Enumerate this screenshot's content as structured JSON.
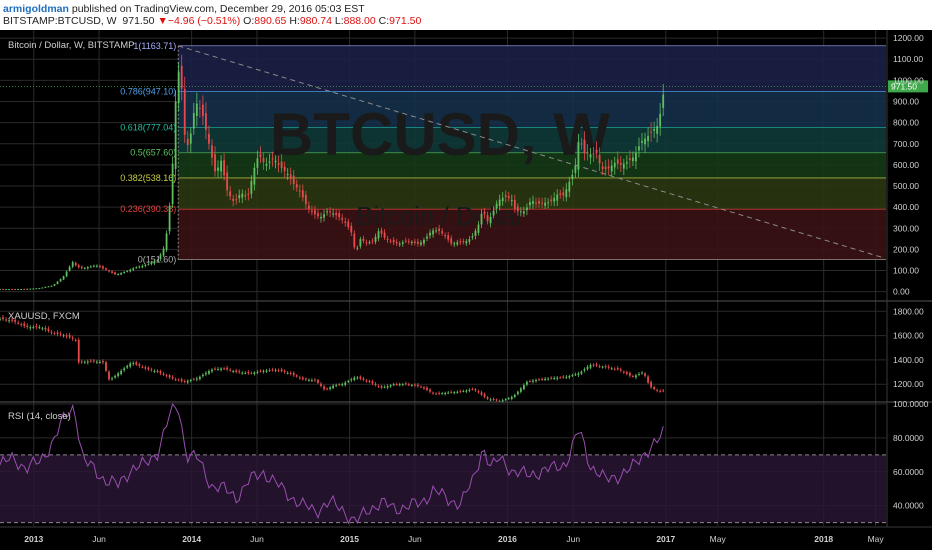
{
  "header": {
    "author": "armigoldman",
    "published": "published on TradingView.com, December 29, 2016 05:03 EST",
    "symbol": "BITSTAMP:BTCUSD, W",
    "last": "971.50",
    "change": "−4.96 (−0.51%)",
    "o_label": "O:",
    "o_value": "890.65",
    "h_label": "H:",
    "h_value": "980.74",
    "l_label": "L:",
    "l_value": "888.00",
    "c_label": "C:",
    "c_value": "971.50"
  },
  "colors": {
    "background": "#000000",
    "grid": "#2a2a2a",
    "candle_up": "#5fbf5f",
    "candle_down": "#e84b4b",
    "rsi_line": "#9a4fb0",
    "rsi_band": "#2a1636",
    "price_tag": "#3ea84a"
  },
  "chart_data": [
    {
      "type": "candlestick",
      "title": "Bitcoin / Dollar, W, BITSTAMP",
      "watermark": "BTCUSD, W",
      "watermark_sub": "Bitcoin / Dollar",
      "y_ticks": [
        "1200.00",
        "1100.00",
        "1000.00",
        "900.00",
        "800.00",
        "700.00",
        "600.00",
        "500.00",
        "400.00",
        "300.00",
        "200.00",
        "100.00",
        "0.00"
      ],
      "ylim": [
        -30,
        1210
      ],
      "last_price_label": "971.50",
      "x_time_range": [
        "2012-10-15",
        "2018-05-25"
      ],
      "fib_levels": [
        {
          "ratio": "1",
          "price": 1163.71,
          "label": "1(1163.71)",
          "label_color": "#aab0ff"
        },
        {
          "ratio": "0.786",
          "price": 947.1,
          "label": "0.786(947.10)",
          "label_color": "#4fa0e6"
        },
        {
          "ratio": "0.618",
          "price": 777.04,
          "label": "0.618(777.04)",
          "label_color": "#22c0a0"
        },
        {
          "ratio": "0.5",
          "price": 657.6,
          "label": "0.5(657.60)",
          "label_color": "#5fc85f"
        },
        {
          "ratio": "0.382",
          "price": 538.16,
          "label": "0.382(538.16)",
          "label_color": "#c8d045"
        },
        {
          "ratio": "0.236",
          "price": 390.38,
          "label": "0.236(390.38)",
          "label_color": "#e84040"
        },
        {
          "ratio": "0",
          "price": 151.6,
          "label": "0(151.60)",
          "label_color": "#b0b0b0"
        }
      ],
      "trendline": [
        [
          "2013-12-01",
          1163.71
        ],
        [
          "2018-05-20",
          160
        ]
      ],
      "close_series": [
        [
          "2012-10-15",
          12
        ],
        [
          "2012-11-15",
          12
        ],
        [
          "2012-12-15",
          13
        ],
        [
          "2013-01-15",
          17
        ],
        [
          "2013-02-15",
          30
        ],
        [
          "2013-03-10",
          70
        ],
        [
          "2013-04-01",
          140
        ],
        [
          "2013-04-10",
          120
        ],
        [
          "2013-04-20",
          110
        ],
        [
          "2013-05-05",
          115
        ],
        [
          "2013-05-25",
          125
        ],
        [
          "2013-06-15",
          105
        ],
        [
          "2013-07-10",
          80
        ],
        [
          "2013-08-01",
          95
        ],
        [
          "2013-08-25",
          115
        ],
        [
          "2013-09-15",
          125
        ],
        [
          "2013-10-15",
          150
        ],
        [
          "2013-11-01",
          220
        ],
        [
          "2013-11-15",
          480
        ],
        [
          "2013-11-25",
          900
        ],
        [
          "2013-12-05",
          1100
        ],
        [
          "2013-12-15",
          750
        ],
        [
          "2013-12-25",
          680
        ],
        [
          "2014-01-10",
          900
        ],
        [
          "2014-01-25",
          850
        ],
        [
          "2014-02-10",
          700
        ],
        [
          "2014-02-25",
          560
        ],
        [
          "2014-03-10",
          620
        ],
        [
          "2014-03-25",
          470
        ],
        [
          "2014-04-10",
          420
        ],
        [
          "2014-04-25",
          470
        ],
        [
          "2014-05-10",
          440
        ],
        [
          "2014-05-25",
          580
        ],
        [
          "2014-06-05",
          650
        ],
        [
          "2014-06-20",
          600
        ],
        [
          "2014-07-10",
          630
        ],
        [
          "2014-07-25",
          590
        ],
        [
          "2014-08-10",
          560
        ],
        [
          "2014-08-25",
          510
        ],
        [
          "2014-09-10",
          470
        ],
        [
          "2014-09-25",
          400
        ],
        [
          "2014-10-10",
          370
        ],
        [
          "2014-10-25",
          350
        ],
        [
          "2014-11-10",
          380
        ],
        [
          "2014-11-25",
          370
        ],
        [
          "2014-12-10",
          350
        ],
        [
          "2014-12-25",
          320
        ],
        [
          "2015-01-05",
          280
        ],
        [
          "2015-01-15",
          180
        ],
        [
          "2015-01-25",
          250
        ],
        [
          "2015-02-10",
          230
        ],
        [
          "2015-02-25",
          240
        ],
        [
          "2015-03-10",
          290
        ],
        [
          "2015-03-25",
          250
        ],
        [
          "2015-04-10",
          235
        ],
        [
          "2015-04-25",
          225
        ],
        [
          "2015-05-10",
          240
        ],
        [
          "2015-05-25",
          235
        ],
        [
          "2015-06-10",
          225
        ],
        [
          "2015-06-25",
          250
        ],
        [
          "2015-07-10",
          290
        ],
        [
          "2015-07-25",
          290
        ],
        [
          "2015-08-10",
          265
        ],
        [
          "2015-08-25",
          225
        ],
        [
          "2015-09-10",
          235
        ],
        [
          "2015-09-25",
          235
        ],
        [
          "2015-10-10",
          255
        ],
        [
          "2015-10-25",
          310
        ],
        [
          "2015-11-05",
          390
        ],
        [
          "2015-11-15",
          330
        ],
        [
          "2015-11-25",
          360
        ],
        [
          "2015-12-10",
          430
        ],
        [
          "2015-12-25",
          450
        ],
        [
          "2016-01-10",
          440
        ],
        [
          "2016-01-20",
          380
        ],
        [
          "2016-02-10",
          380
        ],
        [
          "2016-02-25",
          435
        ],
        [
          "2016-03-10",
          415
        ],
        [
          "2016-03-25",
          420
        ],
        [
          "2016-04-10",
          425
        ],
        [
          "2016-04-25",
          460
        ],
        [
          "2016-05-10",
          455
        ],
        [
          "2016-05-25",
          530
        ],
        [
          "2016-06-05",
          580
        ],
        [
          "2016-06-15",
          740
        ],
        [
          "2016-06-25",
          660
        ],
        [
          "2016-07-10",
          650
        ],
        [
          "2016-07-25",
          655
        ],
        [
          "2016-08-05",
          580
        ],
        [
          "2016-08-20",
          580
        ],
        [
          "2016-09-05",
          610
        ],
        [
          "2016-09-20",
          600
        ],
        [
          "2016-10-05",
          615
        ],
        [
          "2016-10-20",
          640
        ],
        [
          "2016-11-05",
          710
        ],
        [
          "2016-11-20",
          735
        ],
        [
          "2016-12-05",
          770
        ],
        [
          "2016-12-15",
          790
        ],
        [
          "2016-12-29",
          971.5
        ]
      ]
    },
    {
      "type": "candlestick",
      "title": "XAUUSD, FXCM",
      "y_ticks": [
        "1800.00",
        "1600.00",
        "1400.00",
        "1200.00"
      ],
      "ylim": [
        1070,
        1860
      ],
      "close_series": [
        [
          "2012-10-15",
          1740
        ],
        [
          "2012-11-15",
          1720
        ],
        [
          "2012-12-15",
          1670
        ],
        [
          "2013-01-15",
          1670
        ],
        [
          "2013-02-15",
          1620
        ],
        [
          "2013-03-15",
          1600
        ],
        [
          "2013-04-10",
          1560
        ],
        [
          "2013-04-15",
          1380
        ],
        [
          "2013-05-15",
          1390
        ],
        [
          "2013-06-10",
          1380
        ],
        [
          "2013-06-25",
          1230
        ],
        [
          "2013-07-15",
          1290
        ],
        [
          "2013-08-15",
          1380
        ],
        [
          "2013-09-15",
          1330
        ],
        [
          "2013-10-15",
          1300
        ],
        [
          "2013-11-15",
          1250
        ],
        [
          "2013-12-15",
          1220
        ],
        [
          "2014-01-15",
          1250
        ],
        [
          "2014-02-15",
          1320
        ],
        [
          "2014-03-15",
          1330
        ],
        [
          "2014-04-15",
          1300
        ],
        [
          "2014-05-15",
          1290
        ],
        [
          "2014-06-15",
          1310
        ],
        [
          "2014-07-15",
          1320
        ],
        [
          "2014-08-15",
          1290
        ],
        [
          "2014-09-15",
          1240
        ],
        [
          "2014-10-15",
          1230
        ],
        [
          "2014-11-05",
          1150
        ],
        [
          "2014-11-25",
          1190
        ],
        [
          "2014-12-15",
          1200
        ],
        [
          "2015-01-15",
          1260
        ],
        [
          "2015-02-15",
          1220
        ],
        [
          "2015-03-15",
          1170
        ],
        [
          "2015-04-15",
          1200
        ],
        [
          "2015-05-15",
          1200
        ],
        [
          "2015-06-15",
          1180
        ],
        [
          "2015-07-15",
          1120
        ],
        [
          "2015-08-15",
          1130
        ],
        [
          "2015-09-15",
          1140
        ],
        [
          "2015-10-15",
          1160
        ],
        [
          "2015-11-15",
          1080
        ],
        [
          "2015-12-15",
          1060
        ],
        [
          "2016-01-15",
          1100
        ],
        [
          "2016-02-15",
          1220
        ],
        [
          "2016-03-15",
          1240
        ],
        [
          "2016-04-15",
          1250
        ],
        [
          "2016-05-15",
          1260
        ],
        [
          "2016-06-15",
          1290
        ],
        [
          "2016-07-10",
          1360
        ],
        [
          "2016-08-15",
          1340
        ],
        [
          "2016-09-15",
          1320
        ],
        [
          "2016-10-15",
          1260
        ],
        [
          "2016-11-10",
          1300
        ],
        [
          "2016-11-25",
          1180
        ],
        [
          "2016-12-15",
          1140
        ],
        [
          "2016-12-29",
          1145
        ]
      ]
    },
    {
      "type": "line",
      "title": "RSI (14, close)",
      "y_ticks": [
        "100.0000",
        "80.0000",
        "60.0000",
        "40.0000"
      ],
      "ylim": [
        28,
        100
      ],
      "band": [
        30,
        70
      ],
      "series": [
        [
          "2012-10-15",
          64
        ],
        [
          "2012-11-15",
          68
        ],
        [
          "2012-12-15",
          62
        ],
        [
          "2013-01-15",
          66
        ],
        [
          "2013-02-15",
          78
        ],
        [
          "2013-03-15",
          93
        ],
        [
          "2013-04-05",
          99
        ],
        [
          "2013-04-25",
          66
        ],
        [
          "2013-05-15",
          63
        ],
        [
          "2013-06-15",
          55
        ],
        [
          "2013-07-15",
          52
        ],
        [
          "2013-08-15",
          62
        ],
        [
          "2013-09-15",
          64
        ],
        [
          "2013-10-15",
          72
        ],
        [
          "2013-11-15",
          96
        ],
        [
          "2013-12-01",
          99
        ],
        [
          "2013-12-20",
          70
        ],
        [
          "2014-01-15",
          68
        ],
        [
          "2014-02-15",
          52
        ],
        [
          "2014-03-15",
          50
        ],
        [
          "2014-04-15",
          45
        ],
        [
          "2014-05-15",
          55
        ],
        [
          "2014-06-15",
          60
        ],
        [
          "2014-07-15",
          53
        ],
        [
          "2014-08-15",
          46
        ],
        [
          "2014-09-15",
          40
        ],
        [
          "2014-10-15",
          37
        ],
        [
          "2014-11-15",
          42
        ],
        [
          "2014-12-15",
          38
        ],
        [
          "2015-01-15",
          30
        ],
        [
          "2015-02-15",
          38
        ],
        [
          "2015-03-15",
          42
        ],
        [
          "2015-04-15",
          38
        ],
        [
          "2015-05-15",
          40
        ],
        [
          "2015-06-15",
          41
        ],
        [
          "2015-07-15",
          50
        ],
        [
          "2015-08-15",
          43
        ],
        [
          "2015-09-15",
          42
        ],
        [
          "2015-10-15",
          55
        ],
        [
          "2015-11-05",
          75
        ],
        [
          "2015-11-25",
          62
        ],
        [
          "2015-12-15",
          68
        ],
        [
          "2016-01-15",
          60
        ],
        [
          "2016-02-15",
          58
        ],
        [
          "2016-03-15",
          60
        ],
        [
          "2016-04-15",
          62
        ],
        [
          "2016-05-15",
          65
        ],
        [
          "2016-06-15",
          85
        ],
        [
          "2016-07-10",
          64
        ],
        [
          "2016-08-15",
          55
        ],
        [
          "2016-09-15",
          58
        ],
        [
          "2016-10-15",
          62
        ],
        [
          "2016-11-15",
          72
        ],
        [
          "2016-12-15",
          78
        ],
        [
          "2016-12-29",
          84
        ]
      ]
    }
  ],
  "x_axis": {
    "ticks": [
      {
        "label": "2013",
        "date": "2013-01-01",
        "bold": true
      },
      {
        "label": "Jun",
        "date": "2013-06-01",
        "bold": false
      },
      {
        "label": "2014",
        "date": "2014-01-01",
        "bold": true
      },
      {
        "label": "Jun",
        "date": "2014-06-01",
        "bold": false
      },
      {
        "label": "2015",
        "date": "2015-01-01",
        "bold": true
      },
      {
        "label": "Jun",
        "date": "2015-06-01",
        "bold": false
      },
      {
        "label": "2016",
        "date": "2016-01-01",
        "bold": true
      },
      {
        "label": "Jun",
        "date": "2016-06-01",
        "bold": false
      },
      {
        "label": "2017",
        "date": "2017-01-01",
        "bold": true
      },
      {
        "label": "May",
        "date": "2017-05-01",
        "bold": false
      },
      {
        "label": "2018",
        "date": "2018-01-01",
        "bold": true
      },
      {
        "label": "May",
        "date": "2018-05-01",
        "bold": false
      }
    ]
  }
}
